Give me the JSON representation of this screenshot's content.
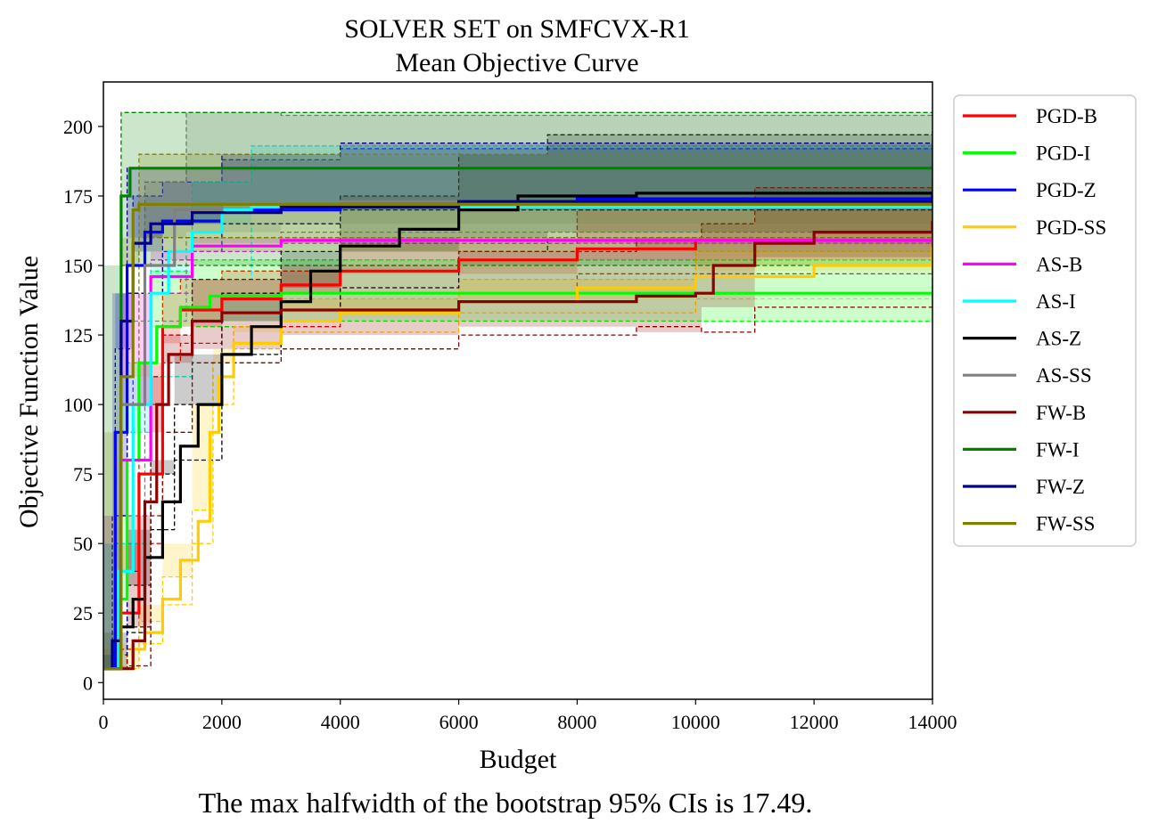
{
  "chart_data": {
    "type": "line",
    "title": "SOLVER SET on SMFCVX-R1",
    "subtitle": "Mean Objective Curve",
    "xlabel": "Budget",
    "ylabel": "Objective Function Value",
    "caption": "The max halfwidth of the bootstrap 95% CIs is 17.49.",
    "xlim": [
      0,
      14000
    ],
    "ylim": [
      -6,
      216
    ],
    "xticks": [
      0,
      2000,
      4000,
      6000,
      8000,
      10000,
      12000,
      14000
    ],
    "yticks": [
      0,
      25,
      50,
      75,
      100,
      125,
      150,
      175,
      200
    ],
    "legend_position": "outside-right",
    "series": [
      {
        "name": "PGD-B",
        "color": "#ff0000",
        "ci": [
          [
            0,
            5,
            5
          ],
          [
            300,
            12,
            40
          ],
          [
            600,
            50,
            100
          ],
          [
            1000,
            115,
            140
          ],
          [
            1300,
            122,
            145
          ],
          [
            2000,
            128,
            148
          ],
          [
            4000,
            140,
            158
          ],
          [
            8000,
            147,
            170
          ],
          [
            14000,
            152,
            181
          ]
        ],
        "mean": [
          [
            0,
            5
          ],
          [
            300,
            25
          ],
          [
            600,
            75
          ],
          [
            1000,
            128
          ],
          [
            1300,
            134
          ],
          [
            2000,
            138
          ],
          [
            3000,
            143
          ],
          [
            4000,
            148
          ],
          [
            6000,
            152
          ],
          [
            8000,
            156
          ],
          [
            10000,
            159
          ],
          [
            12000,
            162
          ],
          [
            14000,
            163
          ]
        ]
      },
      {
        "name": "PGD-I",
        "color": "#00ff00",
        "ci": [
          [
            0,
            5,
            5
          ],
          [
            200,
            10,
            30
          ],
          [
            400,
            60,
            115
          ],
          [
            800,
            110,
            148
          ],
          [
            1500,
            128,
            152
          ],
          [
            3000,
            130,
            152
          ],
          [
            14000,
            130,
            152
          ]
        ],
        "mean": [
          [
            0,
            5
          ],
          [
            250,
            30
          ],
          [
            400,
            80
          ],
          [
            600,
            115
          ],
          [
            900,
            128
          ],
          [
            1300,
            135
          ],
          [
            1800,
            139
          ],
          [
            3000,
            140
          ],
          [
            14000,
            140
          ]
        ]
      },
      {
        "name": "PGD-Z",
        "color": "#0000ff",
        "ci": [
          [
            0,
            5,
            5
          ],
          [
            200,
            50,
            120
          ],
          [
            500,
            140,
            175
          ],
          [
            1000,
            155,
            180
          ],
          [
            2000,
            165,
            188
          ],
          [
            4000,
            172,
            192
          ],
          [
            14000,
            173,
            196
          ]
        ],
        "mean": [
          [
            0,
            5
          ],
          [
            200,
            90
          ],
          [
            400,
            150
          ],
          [
            700,
            162
          ],
          [
            1000,
            166
          ],
          [
            2000,
            170
          ],
          [
            4000,
            172
          ],
          [
            8000,
            174
          ],
          [
            14000,
            176
          ]
        ]
      },
      {
        "name": "PGD-SS",
        "color": "#ffcc00",
        "ci": [
          [
            0,
            5,
            5
          ],
          [
            600,
            14,
            22
          ],
          [
            1000,
            28,
            38
          ],
          [
            1500,
            50,
            62
          ],
          [
            1850,
            100,
            115
          ],
          [
            2200,
            120,
            128
          ],
          [
            3000,
            126,
            138
          ],
          [
            6000,
            133,
            145
          ],
          [
            10000,
            138,
            155
          ],
          [
            14000,
            148,
            168
          ]
        ],
        "mean": [
          [
            0,
            5
          ],
          [
            500,
            12
          ],
          [
            700,
            18
          ],
          [
            1000,
            30
          ],
          [
            1300,
            44
          ],
          [
            1600,
            58
          ],
          [
            1800,
            90
          ],
          [
            1950,
            110
          ],
          [
            2200,
            122
          ],
          [
            3000,
            130
          ],
          [
            4000,
            133
          ],
          [
            6000,
            137
          ],
          [
            8000,
            142
          ],
          [
            10000,
            146
          ],
          [
            12000,
            150
          ],
          [
            14000,
            157
          ]
        ]
      },
      {
        "name": "AS-B",
        "color": "#ff00ff",
        "ci": [
          [
            0,
            5,
            5
          ],
          [
            300,
            60,
            100
          ],
          [
            800,
            140,
            152
          ],
          [
            1500,
            155,
            160
          ],
          [
            3000,
            158,
            160
          ],
          [
            14000,
            158,
            160
          ]
        ],
        "mean": [
          [
            0,
            5
          ],
          [
            300,
            80
          ],
          [
            800,
            146
          ],
          [
            1500,
            157
          ],
          [
            3000,
            159
          ],
          [
            14000,
            159
          ]
        ]
      },
      {
        "name": "AS-I",
        "color": "#00ffff",
        "ci": [
          [
            0,
            5,
            5
          ],
          [
            300,
            50,
            90
          ],
          [
            800,
            110,
            150
          ],
          [
            1500,
            145,
            180
          ],
          [
            2500,
            165,
            193
          ],
          [
            4000,
            170,
            193
          ],
          [
            14000,
            171,
            193
          ]
        ],
        "mean": [
          [
            0,
            5
          ],
          [
            250,
            40
          ],
          [
            500,
            100
          ],
          [
            800,
            140
          ],
          [
            1100,
            155
          ],
          [
            1500,
            162
          ],
          [
            2000,
            170
          ],
          [
            2500,
            171
          ],
          [
            14000,
            172
          ]
        ]
      },
      {
        "name": "AS-Z",
        "color": "#000000",
        "ci": [
          [
            0,
            5,
            5
          ],
          [
            400,
            18,
            35
          ],
          [
            800,
            55,
            75
          ],
          [
            1200,
            80,
            100
          ],
          [
            2000,
            118,
            140
          ],
          [
            3000,
            130,
            155
          ],
          [
            4000,
            142,
            175
          ],
          [
            6000,
            155,
            190
          ],
          [
            7500,
            160,
            197
          ],
          [
            14000,
            162,
            198
          ]
        ],
        "mean": [
          [
            0,
            5
          ],
          [
            300,
            20
          ],
          [
            500,
            30
          ],
          [
            700,
            45
          ],
          [
            1000,
            65
          ],
          [
            1300,
            85
          ],
          [
            1600,
            100
          ],
          [
            2000,
            118
          ],
          [
            2500,
            128
          ],
          [
            3000,
            137
          ],
          [
            3500,
            148
          ],
          [
            4000,
            157
          ],
          [
            5000,
            163
          ],
          [
            6000,
            170
          ],
          [
            7000,
            175
          ],
          [
            9000,
            176
          ],
          [
            14000,
            176
          ]
        ]
      },
      {
        "name": "AS-SS",
        "color": "#808080",
        "ci": [
          [
            0,
            5,
            5
          ],
          [
            300,
            60,
            130
          ],
          [
            700,
            130,
            180
          ],
          [
            1400,
            160,
            205
          ],
          [
            3000,
            162,
            204
          ],
          [
            14000,
            165,
            204
          ]
        ],
        "mean": [
          [
            0,
            5
          ],
          [
            300,
            100
          ],
          [
            700,
            150
          ],
          [
            1200,
            170
          ],
          [
            2000,
            172
          ],
          [
            4000,
            173
          ],
          [
            14000,
            174
          ]
        ]
      },
      {
        "name": "FW-B",
        "color": "#8b0000",
        "ci": [
          [
            0,
            5,
            5
          ],
          [
            300,
            5,
            5
          ],
          [
            400,
            6,
            20
          ],
          [
            800,
            60,
            110
          ],
          [
            1000,
            90,
            125
          ],
          [
            1500,
            115,
            145
          ],
          [
            3000,
            120,
            150
          ],
          [
            6000,
            125,
            155
          ],
          [
            9000,
            128,
            160
          ],
          [
            10100,
            126,
            165
          ],
          [
            11000,
            135,
            178
          ],
          [
            14000,
            153,
            182
          ]
        ],
        "mean": [
          [
            0,
            5
          ],
          [
            350,
            5
          ],
          [
            500,
            15
          ],
          [
            700,
            65
          ],
          [
            900,
            100
          ],
          [
            1100,
            118
          ],
          [
            1500,
            130
          ],
          [
            2000,
            133
          ],
          [
            3000,
            134
          ],
          [
            6000,
            137
          ],
          [
            9000,
            139
          ],
          [
            10000,
            140
          ],
          [
            10300,
            150
          ],
          [
            11000,
            158
          ],
          [
            12000,
            162
          ],
          [
            14000,
            166
          ]
        ]
      },
      {
        "name": "FW-I",
        "color": "#008000",
        "ci": [
          [
            0,
            5,
            5
          ],
          [
            300,
            150,
            205
          ],
          [
            14000,
            150,
            205
          ]
        ],
        "mean": [
          [
            0,
            5
          ],
          [
            300,
            175
          ],
          [
            450,
            185
          ],
          [
            14000,
            185
          ]
        ]
      },
      {
        "name": "FW-Z",
        "color": "#000080",
        "ci": [
          [
            0,
            5,
            5
          ],
          [
            150,
            10,
            60
          ],
          [
            400,
            140,
            185
          ],
          [
            1000,
            160,
            185
          ],
          [
            2000,
            165,
            190
          ],
          [
            4000,
            170,
            194
          ],
          [
            14000,
            170,
            196
          ]
        ],
        "mean": [
          [
            0,
            5
          ],
          [
            150,
            15
          ],
          [
            300,
            130
          ],
          [
            500,
            158
          ],
          [
            800,
            165
          ],
          [
            1500,
            169
          ],
          [
            3000,
            171
          ],
          [
            6000,
            173
          ],
          [
            14000,
            175
          ]
        ]
      },
      {
        "name": "FW-SS",
        "color": "#808000",
        "ci": [
          [
            0,
            5,
            5
          ],
          [
            300,
            90,
            150
          ],
          [
            600,
            160,
            190
          ],
          [
            14000,
            155,
            188
          ]
        ],
        "mean": [
          [
            0,
            5
          ],
          [
            300,
            110
          ],
          [
            500,
            170
          ],
          [
            600,
            172
          ],
          [
            14000,
            172
          ]
        ]
      }
    ]
  }
}
